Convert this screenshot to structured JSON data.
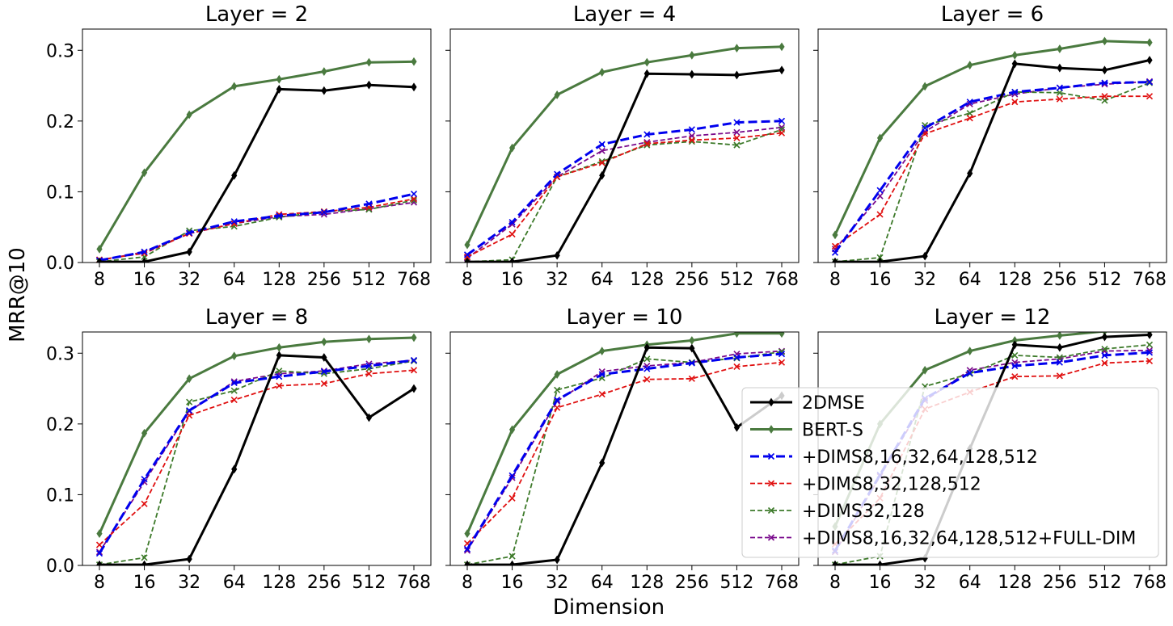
{
  "figure": {
    "ylabel": "MRR@10",
    "xlabel": "Dimension"
  },
  "legend": {
    "position": "lower-right",
    "entries": [
      {
        "label": "2DMSE",
        "color": "#000000",
        "dash": "solid",
        "marker": "diamond",
        "width": 3
      },
      {
        "label": "BERT-S",
        "color": "#4a7a3f",
        "dash": "solid",
        "marker": "diamond",
        "width": 3
      },
      {
        "label": "+DIMS8,16,32,64,128,512",
        "color": "#0000ee",
        "dash": "long",
        "marker": "x",
        "width": 3
      },
      {
        "label": "+DIMS8,32,128,512",
        "color": "#e01010",
        "dash": "short",
        "marker": "x",
        "width": 1.8
      },
      {
        "label": "+DIMS32,128",
        "color": "#3d7a2a",
        "dash": "short",
        "marker": "x",
        "width": 1.8
      },
      {
        "label": "+DIMS8,16,32,64,128,512+FULL-DIM",
        "color": "#7a0a8c",
        "dash": "short",
        "marker": "x",
        "width": 1.8
      }
    ]
  },
  "chart_data": [
    {
      "type": "line",
      "title": "Layer = 2",
      "categories": [
        "8",
        "16",
        "32",
        "64",
        "128",
        "256",
        "512",
        "768"
      ],
      "yticks": [
        "0.0",
        "0.1",
        "0.2",
        "0.3"
      ],
      "ylim": [
        0,
        0.33
      ],
      "grid": false,
      "series": [
        {
          "name": "2DMSE",
          "values": [
            0.001,
            0.001,
            0.015,
            0.123,
            0.245,
            0.243,
            0.251,
            0.248
          ]
        },
        {
          "name": "BERT-S",
          "values": [
            0.019,
            0.127,
            0.209,
            0.249,
            0.259,
            0.27,
            0.283,
            0.284
          ]
        },
        {
          "name": "+DIMS8,16,32,64,128,512",
          "values": [
            0.003,
            0.015,
            0.042,
            0.058,
            0.066,
            0.071,
            0.083,
            0.097
          ]
        },
        {
          "name": "+DIMS8,32,128,512",
          "values": [
            0.004,
            0.013,
            0.041,
            0.055,
            0.068,
            0.072,
            0.078,
            0.09
          ]
        },
        {
          "name": "+DIMS32,128",
          "values": [
            0.001,
            0.008,
            0.045,
            0.051,
            0.064,
            0.072,
            0.075,
            0.088
          ]
        },
        {
          "name": "+DIMS8,16,32,64,128,512+FULL-DIM",
          "values": [
            0.003,
            0.015,
            0.041,
            0.055,
            0.065,
            0.068,
            0.076,
            0.085
          ]
        }
      ]
    },
    {
      "type": "line",
      "title": "Layer = 4",
      "categories": [
        "8",
        "16",
        "32",
        "64",
        "128",
        "256",
        "512",
        "768"
      ],
      "yticks": [
        "0.0",
        "0.1",
        "0.2",
        "0.3"
      ],
      "ylim": [
        0,
        0.33
      ],
      "grid": false,
      "series": [
        {
          "name": "2DMSE",
          "values": [
            0.001,
            0.001,
            0.01,
            0.123,
            0.267,
            0.266,
            0.265,
            0.272
          ]
        },
        {
          "name": "BERT-S",
          "values": [
            0.025,
            0.162,
            0.237,
            0.269,
            0.283,
            0.293,
            0.303,
            0.305
          ]
        },
        {
          "name": "+DIMS8,16,32,64,128,512",
          "values": [
            0.011,
            0.057,
            0.125,
            0.167,
            0.181,
            0.188,
            0.198,
            0.2
          ]
        },
        {
          "name": "+DIMS8,32,128,512",
          "values": [
            0.008,
            0.04,
            0.121,
            0.141,
            0.168,
            0.173,
            0.176,
            0.183
          ]
        },
        {
          "name": "+DIMS32,128",
          "values": [
            0.001,
            0.004,
            0.121,
            0.143,
            0.166,
            0.171,
            0.166,
            0.188
          ]
        },
        {
          "name": "+DIMS8,16,32,64,128,512+FULL-DIM",
          "values": [
            0.006,
            0.054,
            0.121,
            0.158,
            0.17,
            0.179,
            0.184,
            0.191
          ]
        }
      ]
    },
    {
      "type": "line",
      "title": "Layer = 6",
      "categories": [
        "8",
        "16",
        "32",
        "64",
        "128",
        "256",
        "512",
        "768"
      ],
      "yticks": [
        "0.0",
        "0.1",
        "0.2",
        "0.3"
      ],
      "ylim": [
        0,
        0.33
      ],
      "grid": false,
      "series": [
        {
          "name": "2DMSE",
          "values": [
            0.001,
            0.001,
            0.009,
            0.126,
            0.281,
            0.275,
            0.272,
            0.286
          ]
        },
        {
          "name": "BERT-S",
          "values": [
            0.039,
            0.176,
            0.249,
            0.279,
            0.293,
            0.302,
            0.313,
            0.311
          ]
        },
        {
          "name": "+DIMS8,16,32,64,128,512",
          "values": [
            0.014,
            0.102,
            0.19,
            0.227,
            0.241,
            0.247,
            0.254,
            0.255
          ]
        },
        {
          "name": "+DIMS8,32,128,512",
          "values": [
            0.023,
            0.068,
            0.182,
            0.204,
            0.227,
            0.231,
            0.235,
            0.235
          ]
        },
        {
          "name": "+DIMS32,128",
          "values": [
            0.001,
            0.007,
            0.194,
            0.211,
            0.241,
            0.24,
            0.229,
            0.254
          ]
        },
        {
          "name": "+DIMS8,16,32,64,128,512+FULL-DIM",
          "values": [
            0.019,
            0.094,
            0.185,
            0.224,
            0.238,
            0.247,
            0.252,
            0.256
          ]
        }
      ]
    },
    {
      "type": "line",
      "title": "Layer = 8",
      "categories": [
        "8",
        "16",
        "32",
        "64",
        "128",
        "256",
        "512",
        "768"
      ],
      "yticks": [
        "0.0",
        "0.1",
        "0.2",
        "0.3"
      ],
      "ylim": [
        0,
        0.33
      ],
      "grid": false,
      "series": [
        {
          "name": "2DMSE",
          "values": [
            0.001,
            0.001,
            0.009,
            0.136,
            0.297,
            0.294,
            0.209,
            0.25
          ]
        },
        {
          "name": "BERT-S",
          "values": [
            0.045,
            0.187,
            0.264,
            0.296,
            0.308,
            0.316,
            0.32,
            0.322
          ]
        },
        {
          "name": "+DIMS8,16,32,64,128,512",
          "values": [
            0.017,
            0.122,
            0.219,
            0.258,
            0.267,
            0.274,
            0.282,
            0.29
          ]
        },
        {
          "name": "+DIMS8,32,128,512",
          "values": [
            0.029,
            0.087,
            0.212,
            0.234,
            0.254,
            0.257,
            0.271,
            0.276
          ]
        },
        {
          "name": "+DIMS32,128",
          "values": [
            0.001,
            0.011,
            0.231,
            0.247,
            0.275,
            0.271,
            0.278,
            0.289
          ]
        },
        {
          "name": "+DIMS8,16,32,64,128,512+FULL-DIM",
          "values": [
            0.019,
            0.118,
            0.218,
            0.26,
            0.271,
            0.275,
            0.285,
            0.29
          ]
        }
      ]
    },
    {
      "type": "line",
      "title": "Layer = 10",
      "categories": [
        "8",
        "16",
        "32",
        "64",
        "128",
        "256",
        "512",
        "768"
      ],
      "yticks": [
        "0.0",
        "0.1",
        "0.2",
        "0.3"
      ],
      "ylim": [
        0,
        0.33
      ],
      "grid": false,
      "series": [
        {
          "name": "2DMSE",
          "values": [
            0.001,
            0.001,
            0.008,
            0.145,
            0.308,
            0.307,
            0.195,
            0.24
          ]
        },
        {
          "name": "BERT-S",
          "values": [
            0.045,
            0.192,
            0.27,
            0.303,
            0.312,
            0.318,
            0.328,
            0.328
          ]
        },
        {
          "name": "+DIMS8,16,32,64,128,512",
          "values": [
            0.023,
            0.127,
            0.234,
            0.27,
            0.278,
            0.286,
            0.294,
            0.299
          ]
        },
        {
          "name": "+DIMS8,32,128,512",
          "values": [
            0.031,
            0.095,
            0.223,
            0.242,
            0.263,
            0.264,
            0.281,
            0.287
          ]
        },
        {
          "name": "+DIMS32,128",
          "values": [
            0.001,
            0.013,
            0.248,
            0.265,
            0.292,
            0.287,
            0.293,
            0.302
          ]
        },
        {
          "name": "+DIMS8,16,32,64,128,512+FULL-DIM",
          "values": [
            0.021,
            0.124,
            0.232,
            0.274,
            0.282,
            0.287,
            0.299,
            0.303
          ]
        }
      ]
    },
    {
      "type": "line",
      "title": "Layer = 12",
      "categories": [
        "8",
        "16",
        "32",
        "64",
        "128",
        "256",
        "512",
        "768"
      ],
      "yticks": [
        "0.0",
        "0.1",
        "0.2",
        "0.3"
      ],
      "ylim": [
        0,
        0.33
      ],
      "grid": false,
      "series": [
        {
          "name": "2DMSE",
          "values": [
            0.001,
            0.001,
            0.01,
            0.165,
            0.312,
            0.308,
            0.323,
            0.326
          ]
        },
        {
          "name": "BERT-S",
          "values": [
            0.055,
            0.2,
            0.276,
            0.303,
            0.318,
            0.325,
            0.331,
            0.331
          ]
        },
        {
          "name": "+DIMS8,16,32,64,128,512",
          "values": [
            0.021,
            0.128,
            0.236,
            0.272,
            0.282,
            0.287,
            0.297,
            0.301
          ]
        },
        {
          "name": "+DIMS8,32,128,512",
          "values": [
            0.03,
            0.095,
            0.221,
            0.245,
            0.267,
            0.268,
            0.286,
            0.289
          ]
        },
        {
          "name": "+DIMS32,128",
          "values": [
            0.001,
            0.013,
            0.253,
            0.271,
            0.297,
            0.294,
            0.306,
            0.312
          ]
        },
        {
          "name": "+DIMS8,16,32,64,128,512+FULL-DIM",
          "values": [
            0.019,
            0.126,
            0.233,
            0.276,
            0.287,
            0.292,
            0.303,
            0.304
          ]
        }
      ]
    }
  ]
}
